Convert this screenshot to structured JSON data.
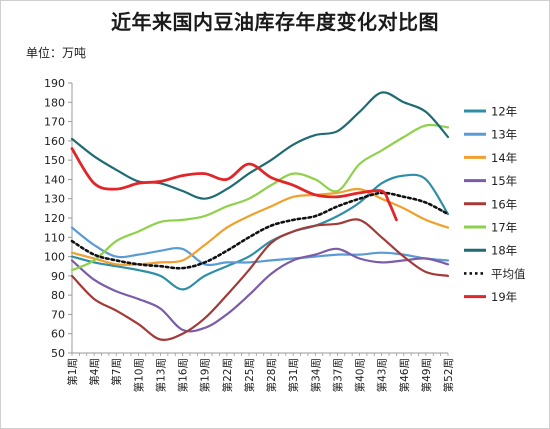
{
  "title": "近年来国内豆油库存年度变化对比图",
  "unit_label": "单位：万吨",
  "chart_data": {
    "type": "line",
    "title": "近年来国内豆油库存年度变化对比图",
    "ylabel": "万吨",
    "ylim": [
      50,
      190
    ],
    "yticks": [
      50,
      60,
      70,
      80,
      90,
      100,
      110,
      120,
      130,
      140,
      150,
      160,
      170,
      180,
      190
    ],
    "grid": false,
    "legend_position": "right",
    "x_count": 52,
    "x_tick_weeks": [
      1,
      4,
      7,
      10,
      13,
      16,
      19,
      22,
      25,
      28,
      31,
      34,
      37,
      40,
      43,
      46,
      49,
      52
    ],
    "x_tick_labels": [
      "第1周",
      "第4周",
      "第7周",
      "第10周",
      "第13周",
      "第16周",
      "第19周",
      "第22周",
      "第25周",
      "第28周",
      "第31周",
      "第34周",
      "第37周",
      "第40周",
      "第43周",
      "第46周",
      "第49周",
      "第52周"
    ],
    "series": [
      {
        "name": "12年",
        "color": "#2e8fa6",
        "dash": false,
        "width": 2.2,
        "x": [
          1,
          4,
          7,
          10,
          13,
          16,
          19,
          22,
          25,
          28,
          31,
          34,
          37,
          40,
          43,
          46,
          49,
          52
        ],
        "y": [
          100,
          97,
          95,
          93,
          90,
          83,
          90,
          95,
          100,
          108,
          113,
          116,
          121,
          128,
          138,
          142,
          140,
          122
        ]
      },
      {
        "name": "13年",
        "color": "#5b9bd5",
        "dash": false,
        "width": 2.2,
        "x": [
          1,
          4,
          7,
          10,
          13,
          16,
          19,
          22,
          25,
          28,
          31,
          34,
          37,
          40,
          43,
          46,
          49,
          52
        ],
        "y": [
          115,
          106,
          100,
          101,
          103,
          104,
          96,
          97,
          97,
          98,
          99,
          100,
          101,
          101,
          102,
          101,
          99,
          98
        ]
      },
      {
        "name": "14年",
        "color": "#f0a02c",
        "dash": false,
        "width": 2.2,
        "x": [
          1,
          4,
          7,
          10,
          13,
          16,
          19,
          22,
          25,
          28,
          31,
          34,
          37,
          40,
          43,
          46,
          49,
          52
        ],
        "y": [
          102,
          99,
          96,
          96,
          97,
          98,
          106,
          115,
          121,
          126,
          131,
          132,
          133,
          135,
          130,
          125,
          119,
          115
        ]
      },
      {
        "name": "15年",
        "color": "#7a5ca8",
        "dash": false,
        "width": 2.2,
        "x": [
          1,
          4,
          7,
          10,
          13,
          16,
          19,
          22,
          25,
          28,
          31,
          34,
          37,
          40,
          43,
          46,
          49,
          52
        ],
        "y": [
          98,
          88,
          82,
          78,
          73,
          62,
          63,
          70,
          80,
          91,
          98,
          101,
          104,
          99,
          97,
          98,
          99,
          96
        ]
      },
      {
        "name": "16年",
        "color": "#a23b38",
        "dash": false,
        "width": 2.2,
        "x": [
          1,
          4,
          7,
          10,
          13,
          16,
          19,
          22,
          25,
          28,
          31,
          34,
          37,
          40,
          43,
          46,
          49,
          52
        ],
        "y": [
          90,
          78,
          72,
          65,
          57,
          60,
          68,
          80,
          93,
          107,
          113,
          116,
          117,
          119,
          110,
          100,
          92,
          90
        ]
      },
      {
        "name": "17年",
        "color": "#8ed14b",
        "dash": false,
        "width": 2.2,
        "x": [
          1,
          4,
          7,
          10,
          13,
          16,
          19,
          22,
          25,
          28,
          31,
          34,
          37,
          40,
          43,
          46,
          49,
          52
        ],
        "y": [
          93,
          98,
          108,
          113,
          118,
          119,
          121,
          126,
          130,
          137,
          143,
          140,
          134,
          148,
          155,
          162,
          168,
          167
        ]
      },
      {
        "name": "18年",
        "color": "#1f6b73",
        "dash": false,
        "width": 2.2,
        "x": [
          1,
          4,
          7,
          10,
          13,
          16,
          19,
          22,
          25,
          28,
          31,
          34,
          37,
          40,
          43,
          46,
          49,
          52
        ],
        "y": [
          161,
          152,
          145,
          139,
          138,
          134,
          130,
          135,
          143,
          150,
          158,
          163,
          165,
          175,
          185,
          180,
          175,
          162
        ]
      },
      {
        "name": "平均值",
        "color": "#111111",
        "dash": true,
        "width": 2.6,
        "x": [
          1,
          4,
          7,
          10,
          13,
          16,
          19,
          22,
          25,
          28,
          31,
          34,
          37,
          40,
          43,
          46,
          49,
          52
        ],
        "y": [
          108,
          101,
          98,
          96,
          95,
          94,
          97,
          103,
          110,
          116,
          119,
          121,
          126,
          130,
          133,
          131,
          128,
          122
        ]
      },
      {
        "name": "19年",
        "color": "#e0262a",
        "dash": false,
        "width": 2.8,
        "x": [
          1,
          4,
          7,
          10,
          13,
          16,
          19,
          22,
          25,
          28,
          31,
          34,
          37,
          40,
          43,
          44,
          45
        ],
        "y": [
          156,
          138,
          135,
          138,
          139,
          142,
          143,
          140,
          148,
          141,
          137,
          132,
          131,
          133,
          134,
          128,
          119
        ]
      }
    ]
  }
}
